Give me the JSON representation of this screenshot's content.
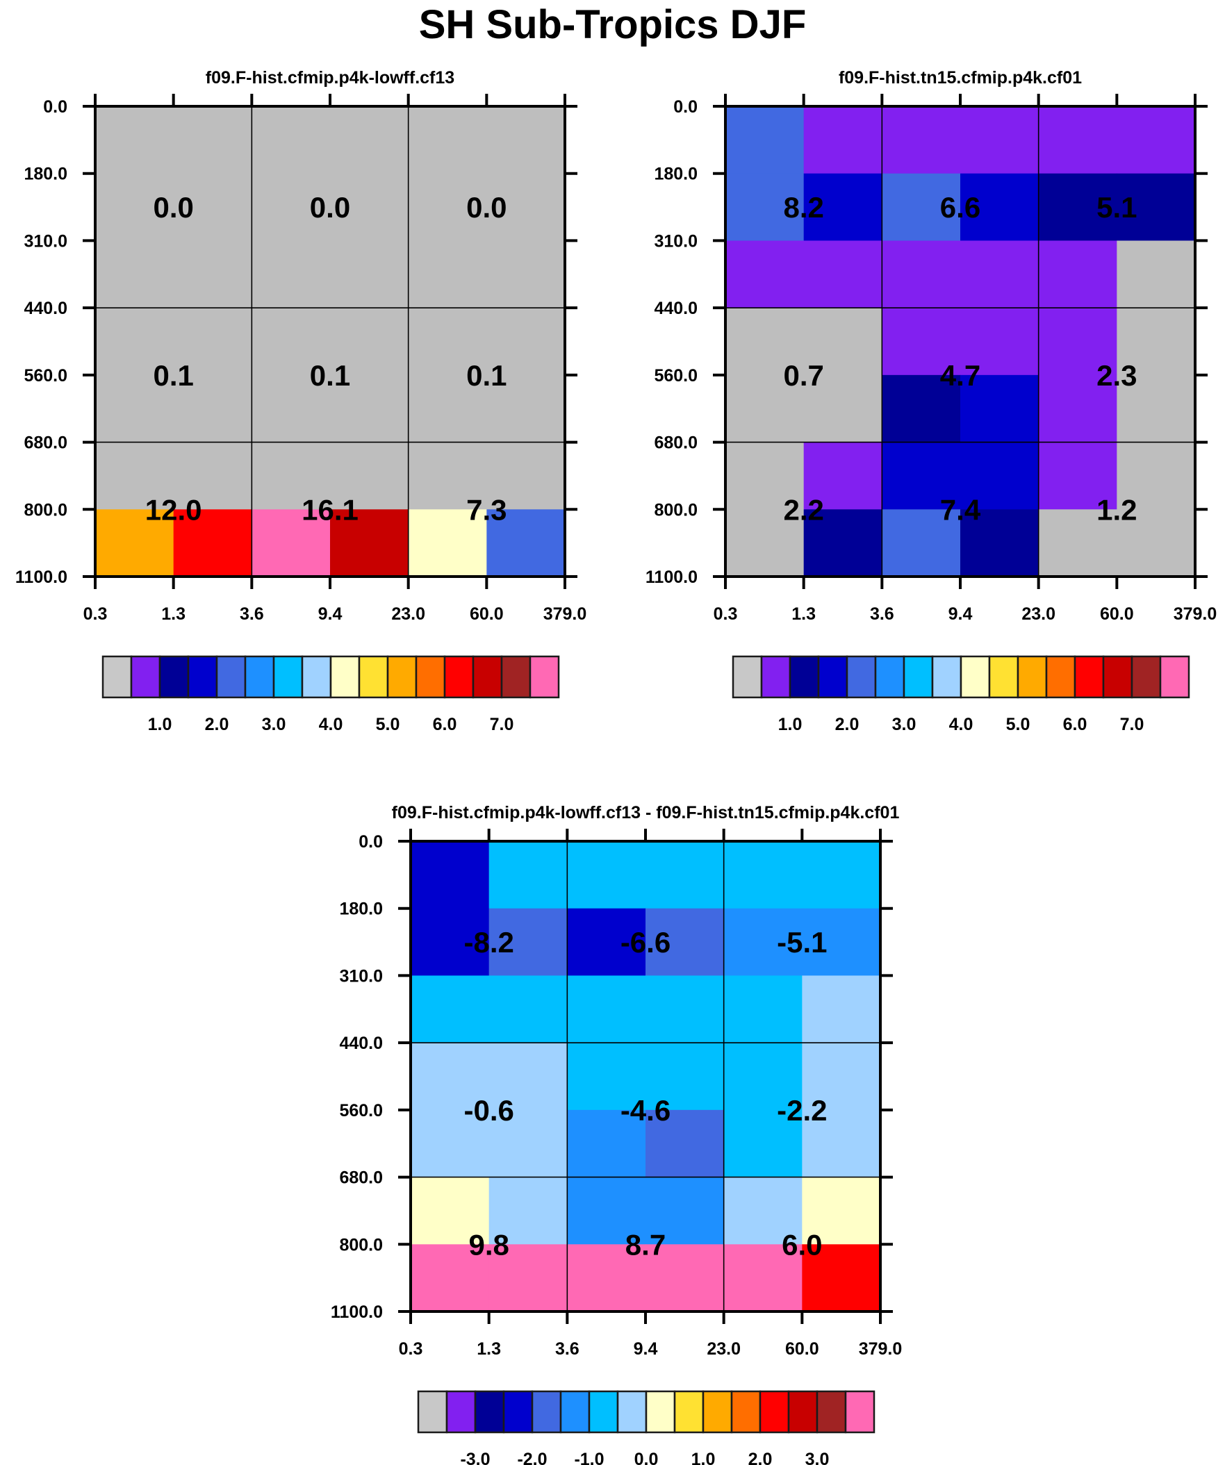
{
  "title": "SH Sub-Tropics DJF",
  "palette": [
    "#bebebe",
    "#8220f0",
    "#000096",
    "#0000cd",
    "#4169e1",
    "#1e90ff",
    "#00bfff",
    "#a0d2ff",
    "#ffffc8",
    "#ffe132",
    "#ffaa00",
    "#ff6e00",
    "#ff0000",
    "#c80000",
    "#a02323",
    "#ff69b4"
  ],
  "chart_data": [
    {
      "type": "heatmap",
      "title": "f09.F-hist.cfmip.p4k-lowff.cf13",
      "x_ticks": [
        "0.3",
        "1.3",
        "3.6",
        "9.4",
        "23.0",
        "60.0",
        "379.0"
      ],
      "y_ticks": [
        "0.0",
        "180.0",
        "310.0",
        "440.0",
        "560.0",
        "680.0",
        "800.0",
        "1100.0"
      ],
      "cells_color_index": [
        [
          0,
          0,
          0,
          0,
          0,
          0
        ],
        [
          0,
          0,
          0,
          0,
          0,
          0
        ],
        [
          0,
          0,
          0,
          0,
          0,
          0
        ],
        [
          0,
          0,
          0,
          0,
          0,
          0
        ],
        [
          0,
          0,
          0,
          0,
          0,
          0
        ],
        [
          0,
          0,
          0,
          0,
          0,
          0
        ],
        [
          10,
          12,
          15,
          13,
          8,
          4
        ]
      ],
      "box_values": [
        [
          "0.0",
          "0.0",
          "0.0"
        ],
        [
          "0.1",
          "0.1",
          "0.1"
        ],
        [
          "12.0",
          "16.1",
          "7.3"
        ]
      ],
      "colorbar_labels": [
        "1.0",
        "2.0",
        "3.0",
        "4.0",
        "5.0",
        "6.0",
        "7.0"
      ]
    },
    {
      "type": "heatmap",
      "title": "f09.F-hist.tn15.cfmip.p4k.cf01",
      "x_ticks": [
        "0.3",
        "1.3",
        "3.6",
        "9.4",
        "23.0",
        "60.0",
        "379.0"
      ],
      "y_ticks": [
        "0.0",
        "180.0",
        "310.0",
        "440.0",
        "560.0",
        "680.0",
        "800.0",
        "1100.0"
      ],
      "cells_color_index": [
        [
          4,
          1,
          1,
          1,
          1,
          1
        ],
        [
          4,
          3,
          4,
          3,
          2,
          2
        ],
        [
          1,
          1,
          1,
          1,
          1,
          0
        ],
        [
          0,
          0,
          1,
          1,
          1,
          0
        ],
        [
          0,
          0,
          2,
          3,
          1,
          0
        ],
        [
          0,
          1,
          3,
          3,
          1,
          0
        ],
        [
          0,
          2,
          4,
          2,
          0,
          0
        ]
      ],
      "box_values": [
        [
          "8.2",
          "6.6",
          "5.1"
        ],
        [
          "0.7",
          "4.7",
          "2.3"
        ],
        [
          "2.2",
          "7.4",
          "1.2"
        ]
      ],
      "colorbar_labels": [
        "1.0",
        "2.0",
        "3.0",
        "4.0",
        "5.0",
        "6.0",
        "7.0"
      ]
    },
    {
      "type": "heatmap",
      "title": "f09.F-hist.cfmip.p4k-lowff.cf13 - f09.F-hist.tn15.cfmip.p4k.cf01",
      "x_ticks": [
        "0.3",
        "1.3",
        "3.6",
        "9.4",
        "23.0",
        "60.0",
        "379.0"
      ],
      "y_ticks": [
        "0.0",
        "180.0",
        "310.0",
        "440.0",
        "560.0",
        "680.0",
        "800.0",
        "1100.0"
      ],
      "cells_color_index": [
        [
          3,
          6,
          6,
          6,
          6,
          6
        ],
        [
          3,
          4,
          3,
          4,
          5,
          5
        ],
        [
          6,
          6,
          6,
          6,
          6,
          7
        ],
        [
          7,
          7,
          6,
          6,
          6,
          7
        ],
        [
          7,
          7,
          5,
          4,
          6,
          7
        ],
        [
          8,
          7,
          5,
          5,
          7,
          8
        ],
        [
          15,
          15,
          15,
          15,
          15,
          12
        ]
      ],
      "box_values": [
        [
          "-8.2",
          "-6.6",
          "-5.1"
        ],
        [
          "-0.6",
          "-4.6",
          "-2.2"
        ],
        [
          "9.8",
          "8.7",
          "6.0"
        ]
      ],
      "colorbar_labels": [
        "-3.0",
        "-2.0",
        "-1.0",
        "0.0",
        "1.0",
        "2.0",
        "3.0"
      ]
    }
  ]
}
